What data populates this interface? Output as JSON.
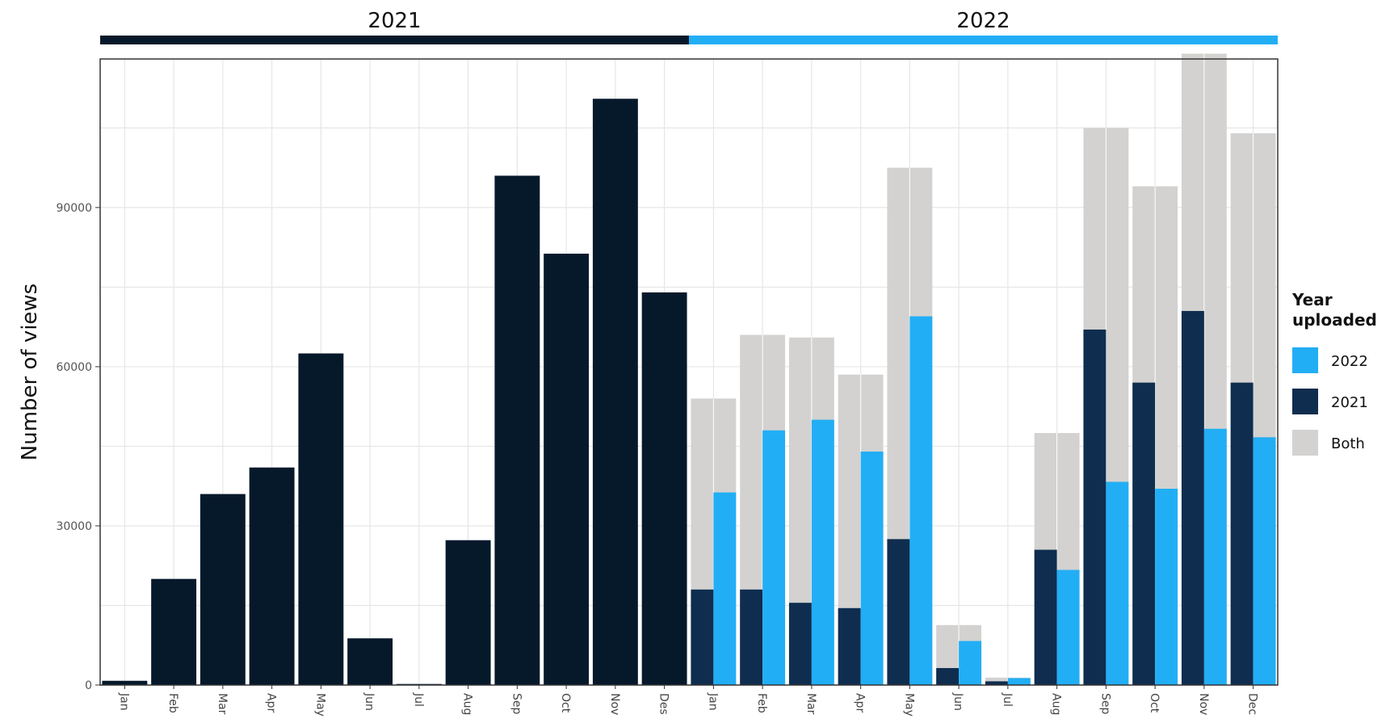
{
  "colors": {
    "year_2021": "#06192b",
    "year_2022": "#22aef5",
    "both": "#d3d2d0",
    "year_2021_split": "#0f2d4f",
    "grid": "#e6e6e6",
    "panel_border": "#333333"
  },
  "chart_data": {
    "type": "bar",
    "title": "",
    "ylabel": "Number of views",
    "xlabel": "",
    "ylim": [
      0,
      118000
    ],
    "yticks": [
      0,
      30000,
      60000,
      90000
    ],
    "ytick_labels": [
      "0",
      "30000",
      "60000",
      "90000"
    ],
    "grid": true,
    "legend_position": "right",
    "year_groups": [
      {
        "label": "2021",
        "start": 0,
        "end": 11
      },
      {
        "label": "2022",
        "start": 12,
        "end": 23
      }
    ],
    "categories": [
      "Jan",
      "Feb",
      "Mar",
      "Apr",
      "May",
      "Jun",
      "Jul",
      "Aug",
      "Sep",
      "Oct",
      "Nov",
      "Des",
      "Jan",
      "Feb",
      "Mar",
      "Apr",
      "May",
      "Jun",
      "Jul",
      "Aug",
      "Sep",
      "Oct",
      "Nov",
      "Dec"
    ],
    "series": [
      {
        "name": "Both",
        "values": [
          null,
          null,
          null,
          null,
          null,
          null,
          null,
          null,
          null,
          null,
          null,
          null,
          54000,
          66000,
          65500,
          58500,
          97500,
          11300,
          1400,
          47500,
          105000,
          94000,
          119000,
          104000
        ]
      },
      {
        "name": "2021",
        "values": [
          800,
          20000,
          36000,
          41000,
          62500,
          8800,
          200,
          27300,
          96000,
          81300,
          110500,
          74000,
          18000,
          18000,
          15500,
          14500,
          27500,
          3200,
          700,
          25500,
          67000,
          57000,
          70500,
          57000
        ]
      },
      {
        "name": "2022",
        "values": [
          null,
          null,
          null,
          null,
          null,
          null,
          null,
          null,
          null,
          null,
          null,
          null,
          36300,
          48000,
          50000,
          44000,
          69500,
          8300,
          1300,
          21700,
          38300,
          37000,
          48300,
          46700
        ]
      }
    ]
  },
  "legend": {
    "title_line1": "Year",
    "title_line2": "uploaded",
    "items": [
      {
        "label": "2022",
        "color": "#22aef5"
      },
      {
        "label": "2021",
        "color": "#0f2d4f"
      },
      {
        "label": "Both",
        "color": "#d3d2d0"
      }
    ]
  }
}
